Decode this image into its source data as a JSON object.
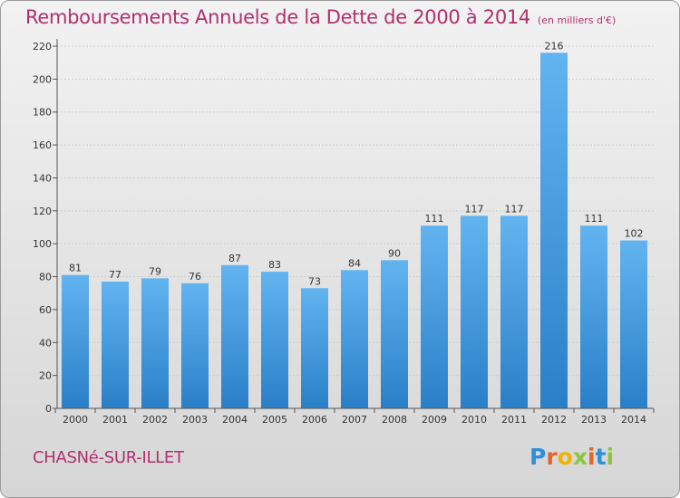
{
  "title": "Remboursements Annuels de la Dette de 2000 à 2014",
  "subtitle": "(en milliers d'€)",
  "commune": "CHASNé-SUR-ILLET",
  "logo": {
    "text": "Proxiti",
    "letters": [
      "P",
      "r",
      "o",
      "x",
      "i",
      "t",
      "i"
    ],
    "colors": [
      "#2f8fd8",
      "#e0662e",
      "#f0b400",
      "#8cc63f",
      "#e0662e",
      "#2f8fd8",
      "#8cc63f"
    ]
  },
  "colors": {
    "title": "#b0306f",
    "bar_top": "#62b4f0",
    "bar_bottom": "#2a7fc8",
    "grid": "#cccccc"
  },
  "chart_data": {
    "type": "bar",
    "title": "Remboursements Annuels de la Dette de 2000 à 2014",
    "subtitle": "(en milliers d'€)",
    "xlabel": "",
    "ylabel": "",
    "categories": [
      "2000",
      "2001",
      "2002",
      "2003",
      "2004",
      "2005",
      "2006",
      "2007",
      "2008",
      "2009",
      "2010",
      "2011",
      "2012",
      "2013",
      "2014"
    ],
    "values": [
      81,
      77,
      79,
      76,
      87,
      83,
      73,
      84,
      90,
      111,
      117,
      117,
      216,
      111,
      102
    ],
    "data_labels": [
      "81",
      "77",
      "79",
      "76",
      "87",
      "83",
      "73",
      "84",
      "90",
      "111",
      "117",
      "117",
      "216",
      "111",
      "102"
    ],
    "ylim": [
      0,
      220
    ],
    "yticks": [
      0,
      20,
      40,
      60,
      80,
      100,
      120,
      140,
      160,
      180,
      200,
      220
    ],
    "grid": true,
    "legend": "none"
  }
}
